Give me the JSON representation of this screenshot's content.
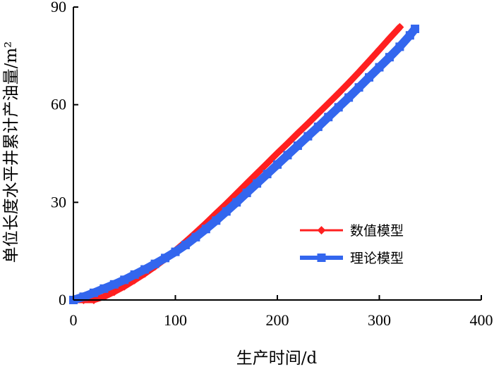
{
  "chart_data": {
    "type": "scatter",
    "xlabel": "生产时间/d",
    "ylabel": "单位长度水平井累计产油量/m²",
    "xlim": [
      0,
      400
    ],
    "ylim": [
      0,
      90
    ],
    "x_ticks": [
      "0",
      "100",
      "200",
      "300",
      "400"
    ],
    "y_ticks": [
      "0",
      "30",
      "60",
      "90"
    ],
    "x_tick_values": [
      0,
      100,
      200,
      300,
      400
    ],
    "y_tick_values": [
      0,
      30,
      60,
      90
    ],
    "grid": false,
    "legend_position": "lower-right",
    "series": [
      {
        "name": "数值模型",
        "color": "#ff2020",
        "marker": "diamond",
        "x": [
          0,
          10,
          20,
          30,
          40,
          50,
          60,
          70,
          80,
          90,
          100,
          110,
          120,
          130,
          140,
          150,
          160,
          170,
          180,
          190,
          200,
          210,
          220,
          230,
          240,
          250,
          260,
          270,
          280,
          290,
          300,
          310,
          320
        ],
        "y": [
          0,
          0,
          0,
          1,
          2.5,
          4.2,
          6.1,
          8.1,
          10.3,
          12.6,
          15.2,
          17.9,
          20.7,
          23.6,
          26.6,
          29.6,
          32.7,
          35.8,
          38.9,
          42.0,
          45.1,
          48.1,
          51.2,
          54.2,
          57.3,
          60.4,
          63.5,
          66.7,
          70.0,
          73.4,
          76.9,
          80.4,
          83.8
        ]
      },
      {
        "name": "理论模型",
        "color": "#3366ee",
        "marker": "square",
        "x": [
          0,
          10,
          20,
          30,
          40,
          50,
          60,
          70,
          80,
          90,
          100,
          110,
          120,
          130,
          140,
          150,
          160,
          170,
          180,
          190,
          200,
          210,
          220,
          230,
          240,
          250,
          260,
          270,
          280,
          290,
          300,
          310,
          320,
          330,
          335
        ],
        "y": [
          0,
          1.0,
          2.2,
          3.5,
          4.8,
          6.2,
          7.8,
          9.4,
          11.1,
          12.9,
          14.8,
          16.9,
          19.3,
          21.8,
          24.4,
          27.2,
          30.0,
          32.9,
          35.8,
          38.7,
          41.6,
          44.5,
          47.4,
          50.3,
          53.2,
          56.2,
          59.2,
          62.2,
          65.3,
          68.4,
          71.5,
          74.6,
          77.8,
          81.3,
          83.3
        ]
      }
    ]
  }
}
